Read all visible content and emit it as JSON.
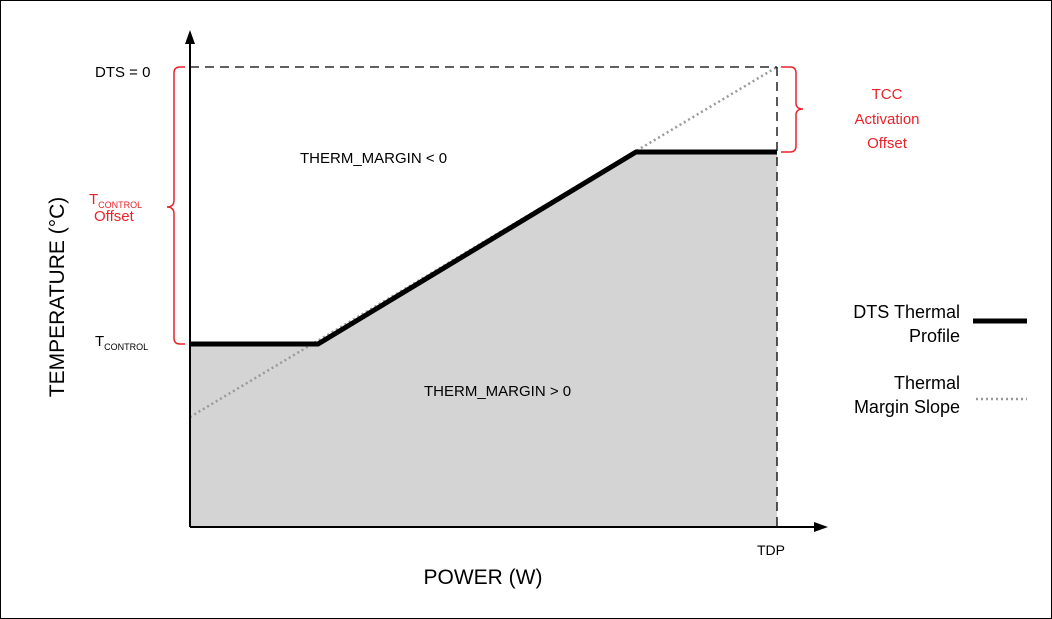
{
  "labels": {
    "dts_zero": "DTS = 0",
    "t_control_main": "T",
    "t_control_sub": "CONTROL",
    "t_control_offset_main": "T",
    "t_control_offset_sub": "CONTROL",
    "t_control_offset_word": "Offset",
    "tcc_line1": "TCC",
    "tcc_line2": "Activation",
    "tcc_line3": "Offset",
    "therm_margin_negative": "THERM_MARGIN < 0",
    "therm_margin_positive": "THERM_MARGIN > 0",
    "y_axis": "TEMPERATURE (°C)",
    "x_axis": "POWER (W)",
    "tdp": "TDP"
  },
  "legend": [
    {
      "line1": "DTS Thermal",
      "line2": "Profile",
      "style": "solid-thick"
    },
    {
      "line1": "Thermal",
      "line2": "Margin Slope",
      "style": "dotted"
    }
  ],
  "colors": {
    "accent_red": "#e8242a",
    "region_fill": "#d4d4d4",
    "profile_line": "#000000",
    "slope_line": "#999999"
  }
}
